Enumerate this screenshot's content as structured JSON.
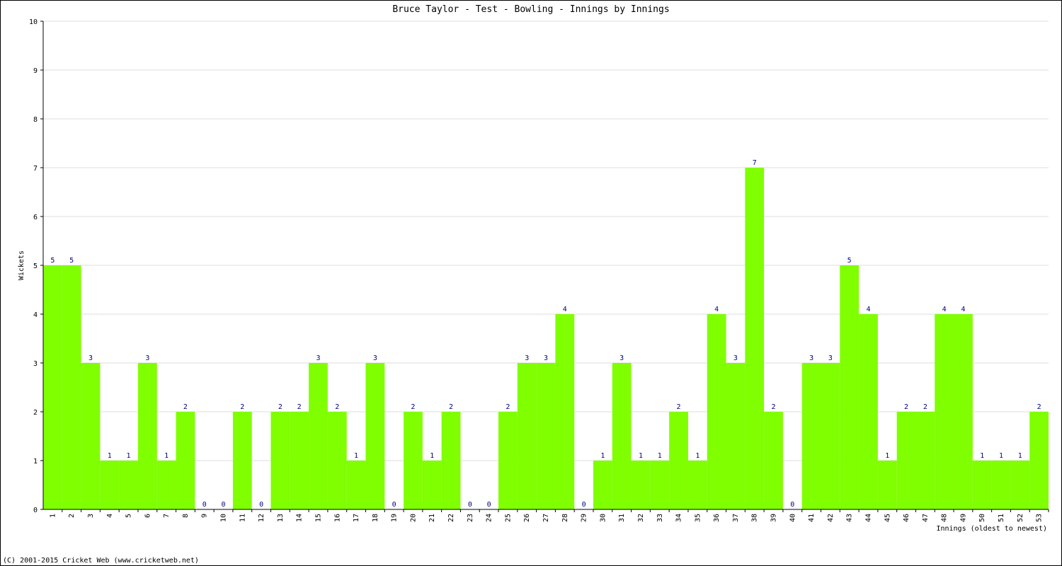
{
  "chart_data": {
    "type": "bar",
    "title": "Bruce Taylor - Test - Bowling - Innings by Innings",
    "y_label": "Wickets",
    "x_label": "Innings (oldest to newest)",
    "footer": "(C) 2001-2015 Cricket Web (www.cricketweb.net)",
    "categories": [
      "1",
      "2",
      "3",
      "4",
      "5",
      "6",
      "7",
      "8",
      "9",
      "10",
      "11",
      "12",
      "13",
      "14",
      "15",
      "16",
      "17",
      "18",
      "19",
      "20",
      "21",
      "22",
      "23",
      "24",
      "25",
      "26",
      "27",
      "28",
      "29",
      "30",
      "31",
      "32",
      "33",
      "34",
      "35",
      "36",
      "37",
      "38",
      "39",
      "40",
      "41",
      "42",
      "43",
      "44",
      "45",
      "46",
      "47",
      "48",
      "49",
      "50",
      "51",
      "52",
      "53"
    ],
    "values": [
      5,
      5,
      3,
      1,
      1,
      3,
      1,
      2,
      0,
      0,
      2,
      0,
      2,
      2,
      3,
      2,
      1,
      3,
      0,
      2,
      1,
      2,
      0,
      0,
      2,
      3,
      3,
      4,
      0,
      1,
      3,
      1,
      1,
      2,
      1,
      4,
      3,
      7,
      2,
      0,
      3,
      3,
      5,
      4,
      1,
      2,
      2,
      4,
      4,
      1,
      1,
      1,
      2
    ],
    "color": "#7fff00",
    "ylim": [
      0,
      10
    ],
    "yticks": [
      0,
      1,
      2,
      3,
      4,
      5,
      6,
      7,
      8,
      9,
      10
    ],
    "grid": true
  }
}
